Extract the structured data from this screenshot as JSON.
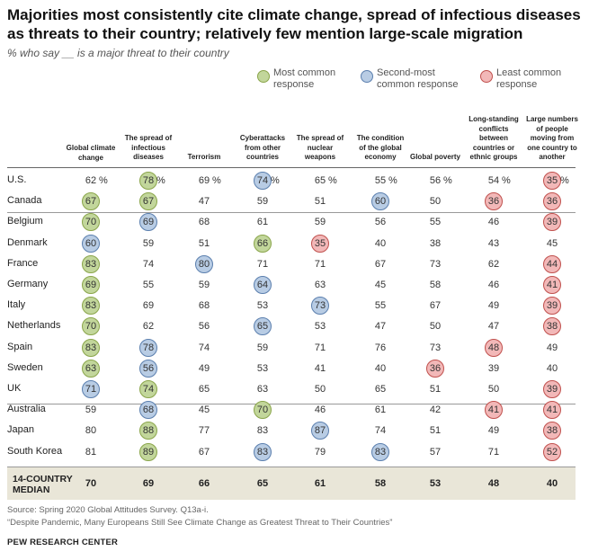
{
  "title": "Majorities most consistently cite climate change, spread of infectious diseases as threats to their country; relatively few mention large-scale migration",
  "subtitle": "% who say __ is a major threat to their country",
  "colors": {
    "most": "#c2d69b",
    "second": "#b8cce4",
    "least": "#f2b8b8",
    "most_border": "#8aa54a",
    "second_border": "#5b7fae",
    "least_border": "#c0504d"
  },
  "legend": [
    {
      "key": "most",
      "label": "Most common response"
    },
    {
      "key": "second",
      "label": "Second-most common response"
    },
    {
      "key": "least",
      "label": "Least common response"
    }
  ],
  "chart_data": {
    "type": "table",
    "columns": [
      "Global climate change",
      "The spread of infectious diseases",
      "Terrorism",
      "Cyberattacks from other countries",
      "The spread of nuclear weapons",
      "The condition of the global economy",
      "Global poverty",
      "Long-standing conflicts between countries or ethnic groups",
      "Large numbers of people moving from one country to another"
    ],
    "rows": [
      {
        "country": "U.S.",
        "values": [
          62,
          78,
          69,
          74,
          65,
          55,
          56,
          54,
          35
        ],
        "marks": [
          "",
          "most",
          "",
          "second",
          "",
          "",
          "",
          "",
          "least"
        ]
      },
      {
        "country": "Canada",
        "values": [
          67,
          67,
          47,
          59,
          51,
          60,
          50,
          36,
          36
        ],
        "marks": [
          "most",
          "most",
          "",
          "",
          "",
          "second",
          "",
          "least",
          "least"
        ]
      },
      {
        "country": "Belgium",
        "values": [
          70,
          69,
          68,
          61,
          59,
          56,
          55,
          46,
          39
        ],
        "marks": [
          "most",
          "second",
          "",
          "",
          "",
          "",
          "",
          "",
          "least"
        ]
      },
      {
        "country": "Denmark",
        "values": [
          60,
          59,
          51,
          66,
          35,
          40,
          38,
          43,
          45
        ],
        "marks": [
          "second",
          "",
          "",
          "most",
          "least",
          "",
          "",
          "",
          ""
        ]
      },
      {
        "country": "France",
        "values": [
          83,
          74,
          80,
          71,
          71,
          67,
          73,
          62,
          44
        ],
        "marks": [
          "most",
          "",
          "second",
          "",
          "",
          "",
          "",
          "",
          "least"
        ]
      },
      {
        "country": "Germany",
        "values": [
          69,
          55,
          59,
          64,
          63,
          45,
          58,
          46,
          41
        ],
        "marks": [
          "most",
          "",
          "",
          "second",
          "",
          "",
          "",
          "",
          "least"
        ]
      },
      {
        "country": "Italy",
        "values": [
          83,
          69,
          68,
          53,
          73,
          55,
          67,
          49,
          39
        ],
        "marks": [
          "most",
          "",
          "",
          "",
          "second",
          "",
          "",
          "",
          "least"
        ]
      },
      {
        "country": "Netherlands",
        "values": [
          70,
          62,
          56,
          65,
          53,
          47,
          50,
          47,
          38
        ],
        "marks": [
          "most",
          "",
          "",
          "second",
          "",
          "",
          "",
          "",
          "least"
        ]
      },
      {
        "country": "Spain",
        "values": [
          83,
          78,
          74,
          59,
          71,
          76,
          73,
          48,
          49
        ],
        "marks": [
          "most",
          "second",
          "",
          "",
          "",
          "",
          "",
          "least",
          ""
        ]
      },
      {
        "country": "Sweden",
        "values": [
          63,
          56,
          49,
          53,
          41,
          40,
          36,
          39,
          40
        ],
        "marks": [
          "most",
          "second",
          "",
          "",
          "",
          "",
          "least",
          "",
          ""
        ]
      },
      {
        "country": "UK",
        "values": [
          71,
          74,
          65,
          63,
          50,
          65,
          51,
          50,
          39
        ],
        "marks": [
          "second",
          "most",
          "",
          "",
          "",
          "",
          "",
          "",
          "least"
        ]
      },
      {
        "country": "Australia",
        "values": [
          59,
          68,
          45,
          70,
          46,
          61,
          42,
          41,
          41
        ],
        "marks": [
          "",
          "second",
          "",
          "most",
          "",
          "",
          "",
          "least",
          "least"
        ]
      },
      {
        "country": "Japan",
        "values": [
          80,
          88,
          77,
          83,
          87,
          74,
          51,
          49,
          38
        ],
        "marks": [
          "",
          "most",
          "",
          "",
          "second",
          "",
          "",
          "",
          "least"
        ]
      },
      {
        "country": "South Korea",
        "values": [
          81,
          89,
          67,
          83,
          79,
          83,
          57,
          71,
          52
        ],
        "marks": [
          "",
          "most",
          "",
          "second",
          "",
          "second",
          "",
          "",
          "least"
        ]
      }
    ],
    "median": {
      "label": "14-COUNTRY MEDIAN",
      "values": [
        70,
        69,
        66,
        65,
        61,
        58,
        53,
        48,
        40
      ]
    },
    "percent_suffix": "%"
  },
  "notes": [
    "Source: Spring 2020 Global Attitudes Survey. Q13a-i.",
    "“Despite Pandemic, Many Europeans Still See Climate Change as Greatest Threat to Their Countries”"
  ],
  "brand": "PEW RESEARCH CENTER"
}
